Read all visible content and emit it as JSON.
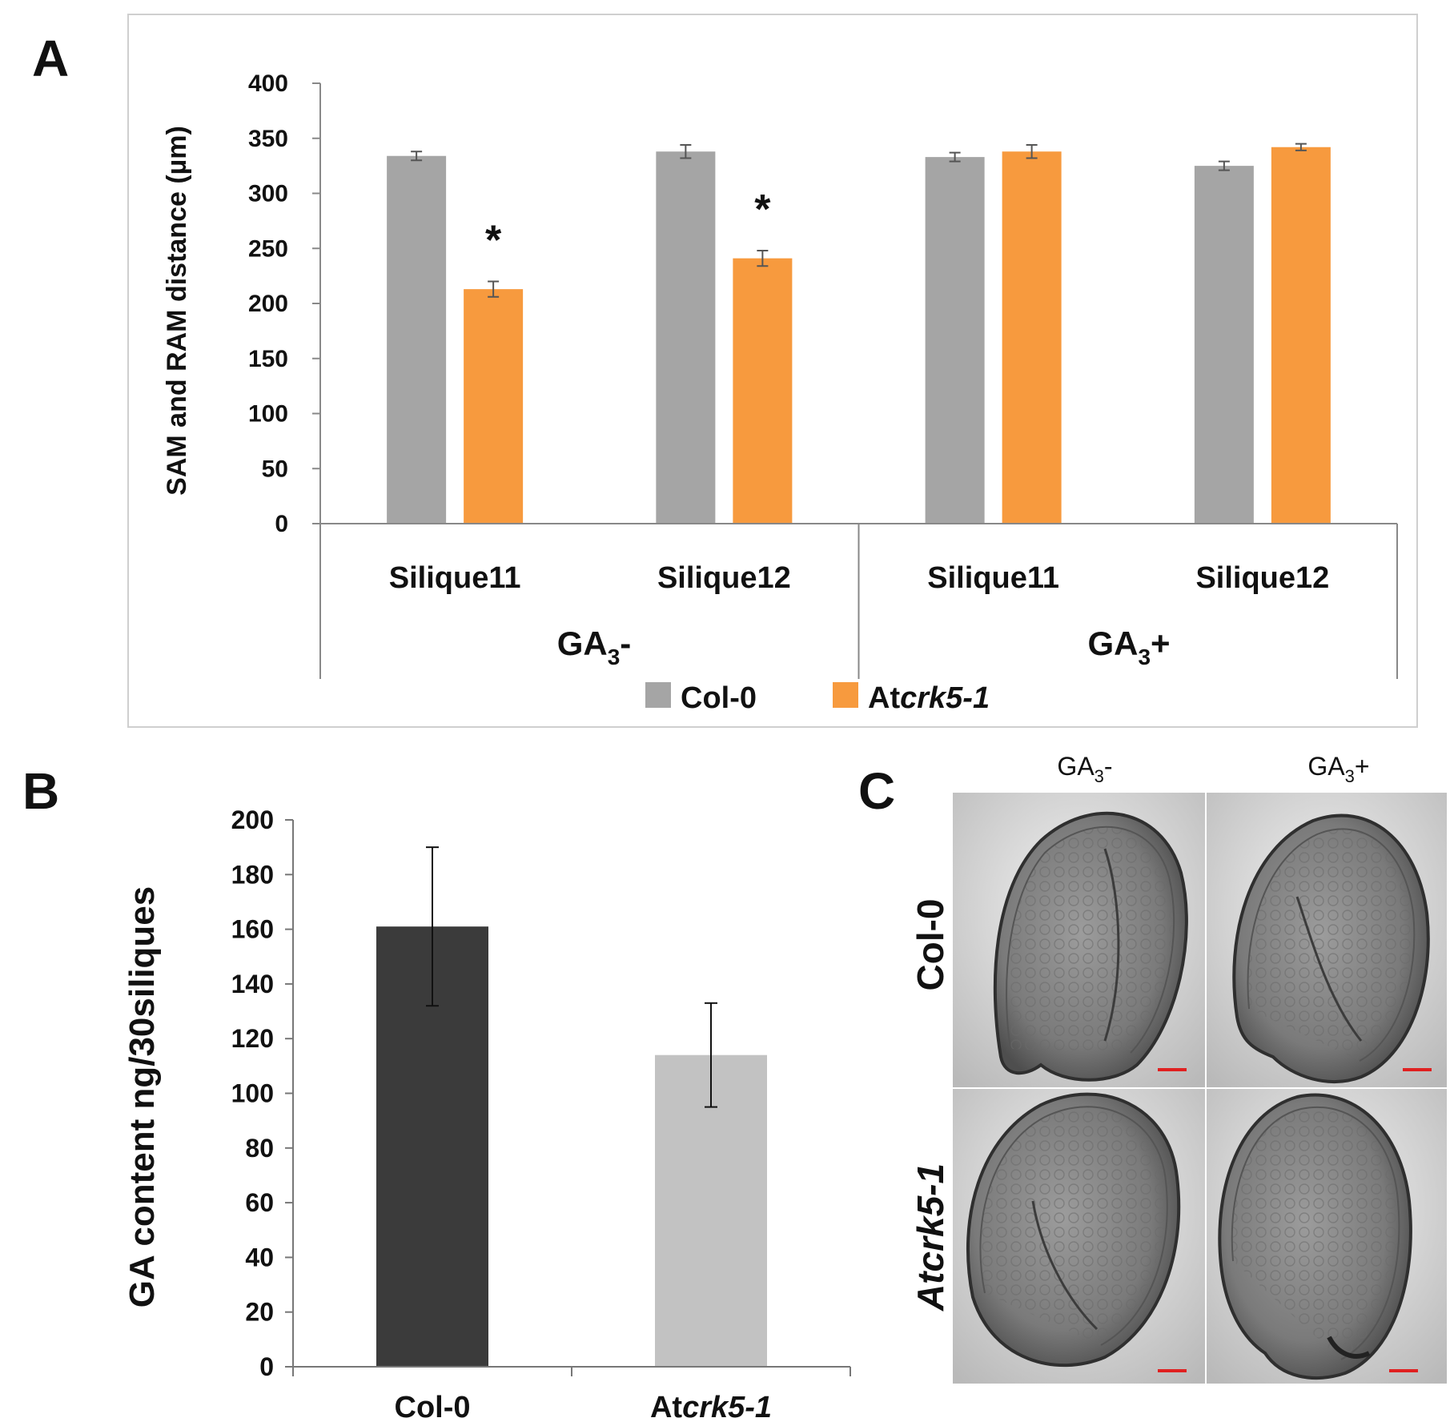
{
  "panels": {
    "a": "A",
    "b": "B",
    "c": "C"
  },
  "chart_data": [
    {
      "panel": "A",
      "type": "bar",
      "ylabel": "SAM and RAM distance (µm)",
      "ylim": [
        0,
        400
      ],
      "yticks": [
        "0",
        "50",
        "100",
        "150",
        "200",
        "250",
        "300",
        "350",
        "400"
      ],
      "groups": [
        {
          "label": "GA3-",
          "base": "GA",
          "sub": "3",
          "suffix": "-",
          "categories": [
            "Silique11",
            "Silique12"
          ]
        },
        {
          "label": "GA3+",
          "base": "GA",
          "sub": "3",
          "suffix": "+",
          "categories": [
            "Silique11",
            "Silique12"
          ]
        }
      ],
      "categories": [
        "Silique11",
        "Silique12",
        "Silique11",
        "Silique12"
      ],
      "series": [
        {
          "name": "Col-0",
          "prefix": "Col-0",
          "italic": "",
          "color": "#a5a5a5",
          "values": [
            334,
            338,
            333,
            325
          ],
          "errors": [
            4,
            6,
            4,
            4
          ]
        },
        {
          "name": "Atcrk5-1",
          "prefix": "At",
          "italic": "crk5-1",
          "color": "#f79a3e",
          "values": [
            213,
            241,
            338,
            342
          ],
          "errors": [
            7,
            7,
            6,
            3
          ]
        }
      ],
      "annotations": [
        {
          "text": "*",
          "category_index": 0,
          "series": "Atcrk5-1"
        },
        {
          "text": "*",
          "category_index": 1,
          "series": "Atcrk5-1"
        }
      ]
    },
    {
      "panel": "B",
      "type": "bar",
      "ylabel": "GA content ng/30siliques",
      "ylim": [
        0,
        200
      ],
      "yticks": [
        "0",
        "20",
        "40",
        "60",
        "80",
        "100",
        "120",
        "140",
        "160",
        "180",
        "200"
      ],
      "categories": [
        {
          "label": "Col-0",
          "prefix": "Col-0",
          "italic": ""
        },
        {
          "label": "Atcrk5-1",
          "prefix": "At",
          "italic": "crk5-1"
        }
      ],
      "values": [
        161,
        114
      ],
      "errors": [
        29,
        19
      ],
      "colors": [
        "#3b3b3b",
        "#c2c2c2"
      ]
    }
  ],
  "micrographs": {
    "columns": [
      {
        "base": "GA",
        "sub": "3",
        "suffix": "-"
      },
      {
        "base": "GA",
        "sub": "3",
        "suffix": "+"
      }
    ],
    "rows": [
      {
        "prefix": "Col-0",
        "italic": ""
      },
      {
        "prefix": "At",
        "italic": "crk5-1"
      }
    ],
    "scale_bar_color": "#e02020"
  }
}
